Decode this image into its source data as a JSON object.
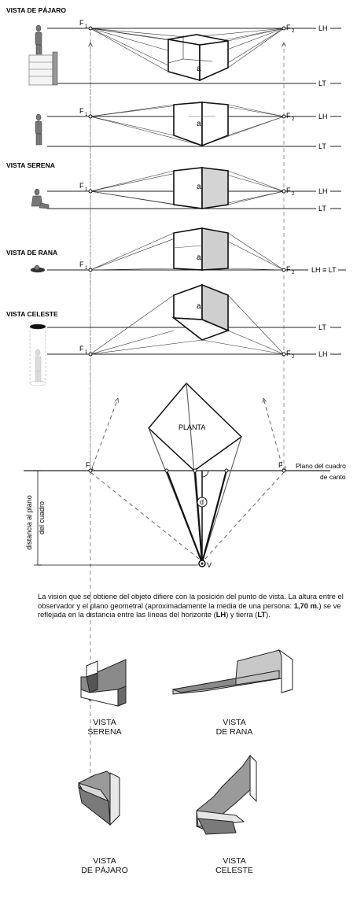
{
  "rows": [
    {
      "title": "VISTA DE PÁJARO",
      "f1": "F",
      "f1_sub": "1",
      "f2": "F",
      "f2_sub": "2",
      "right_upper": "LH",
      "right_lower": "LT",
      "face_label": "a"
    },
    {
      "title": "",
      "f1": "F",
      "f1_sub": "1",
      "f2": "F",
      "f2_sub": "2",
      "right_upper": "LH",
      "right_lower": "LT",
      "face_label": "a"
    },
    {
      "title": "VISTA SERENA",
      "f1": "F",
      "f1_sub": "1",
      "f2": "F",
      "f2_sub": "2",
      "right_upper": "LH",
      "right_lower": "LT",
      "face_label": "a"
    },
    {
      "title": "VISTA DE RANA",
      "f1": "F",
      "f1_sub": "1",
      "f2": "F",
      "f2_sub": "2",
      "right_single": "LH ≡ LT",
      "face_label": "a"
    },
    {
      "title": "VISTA CELESTE",
      "f1": "F",
      "f1_sub": "1",
      "f2": "F",
      "f2_sub": "2",
      "right_upper": "LT",
      "right_lower": "LH",
      "face_label": "a"
    }
  ],
  "plan": {
    "label": "PLANTA",
    "f1": "F",
    "f1_sub": "1",
    "f2": "F",
    "f2_sub": "2",
    "plane_line1": "Plano del cuadro",
    "plane_line2": "de canto",
    "distance_line1": "distancia al plano",
    "distance_line2": "del cuadro",
    "d_label": "d",
    "viewer_label": "V"
  },
  "caption": {
    "part1": "La visión que se obtiene del objeto difiere con la posición del punto de vista. La altura entre el observador y el plano geometral (aproximadamente la media de una persona: ",
    "bold1": "1,70 m.",
    "part2": ") se ve reflejada en la distancia entre las líneas del horizonte (",
    "bold2": "LH",
    "part3": ") y tierra (",
    "bold3": "LT",
    "part4": ")."
  },
  "examples": [
    {
      "line1": "VISTA",
      "line2": "SERENA"
    },
    {
      "line1": "VISTA",
      "line2": "DE RANA"
    },
    {
      "line1": "VISTA",
      "line2": "DE PÁJARO"
    },
    {
      "line1": "VISTA",
      "line2": "CELESTE"
    }
  ]
}
